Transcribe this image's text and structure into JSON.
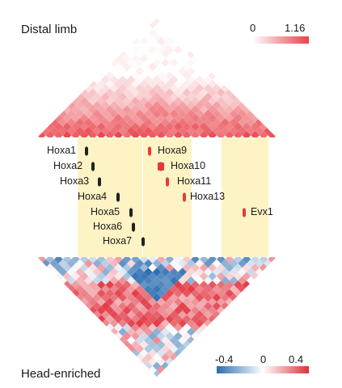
{
  "panels": {
    "top_label": "Distal limb",
    "bottom_label": "Head-enriched"
  },
  "top_scale": {
    "min": "0",
    "max": "1.16",
    "colors": [
      "#ffffff",
      "#e8424a"
    ]
  },
  "bottom_scale": {
    "min": "-0.4",
    "mid": "0",
    "max": "0.4",
    "colors": [
      "#2a6db0",
      "#ffffff",
      "#e0303c"
    ]
  },
  "genes": [
    {
      "name": "Hoxa1",
      "color": "#222222"
    },
    {
      "name": "Hoxa2",
      "color": "#222222"
    },
    {
      "name": "Hoxa3",
      "color": "#222222"
    },
    {
      "name": "Hoxa4",
      "color": "#222222"
    },
    {
      "name": "Hoxa5",
      "color": "#222222"
    },
    {
      "name": "Hoxa6",
      "color": "#222222"
    },
    {
      "name": "Hoxa7",
      "color": "#222222"
    },
    {
      "name": "Hoxa9",
      "color": "#e23a3a"
    },
    {
      "name": "Hoxa10",
      "color": "#e23a3a"
    },
    {
      "name": "Hoxa11",
      "color": "#e23a3a"
    },
    {
      "name": "Hoxa13",
      "color": "#e23a3a"
    },
    {
      "name": "Evx1",
      "color": "#e23a3a"
    }
  ],
  "highlight_color": "#fdf3c4"
}
